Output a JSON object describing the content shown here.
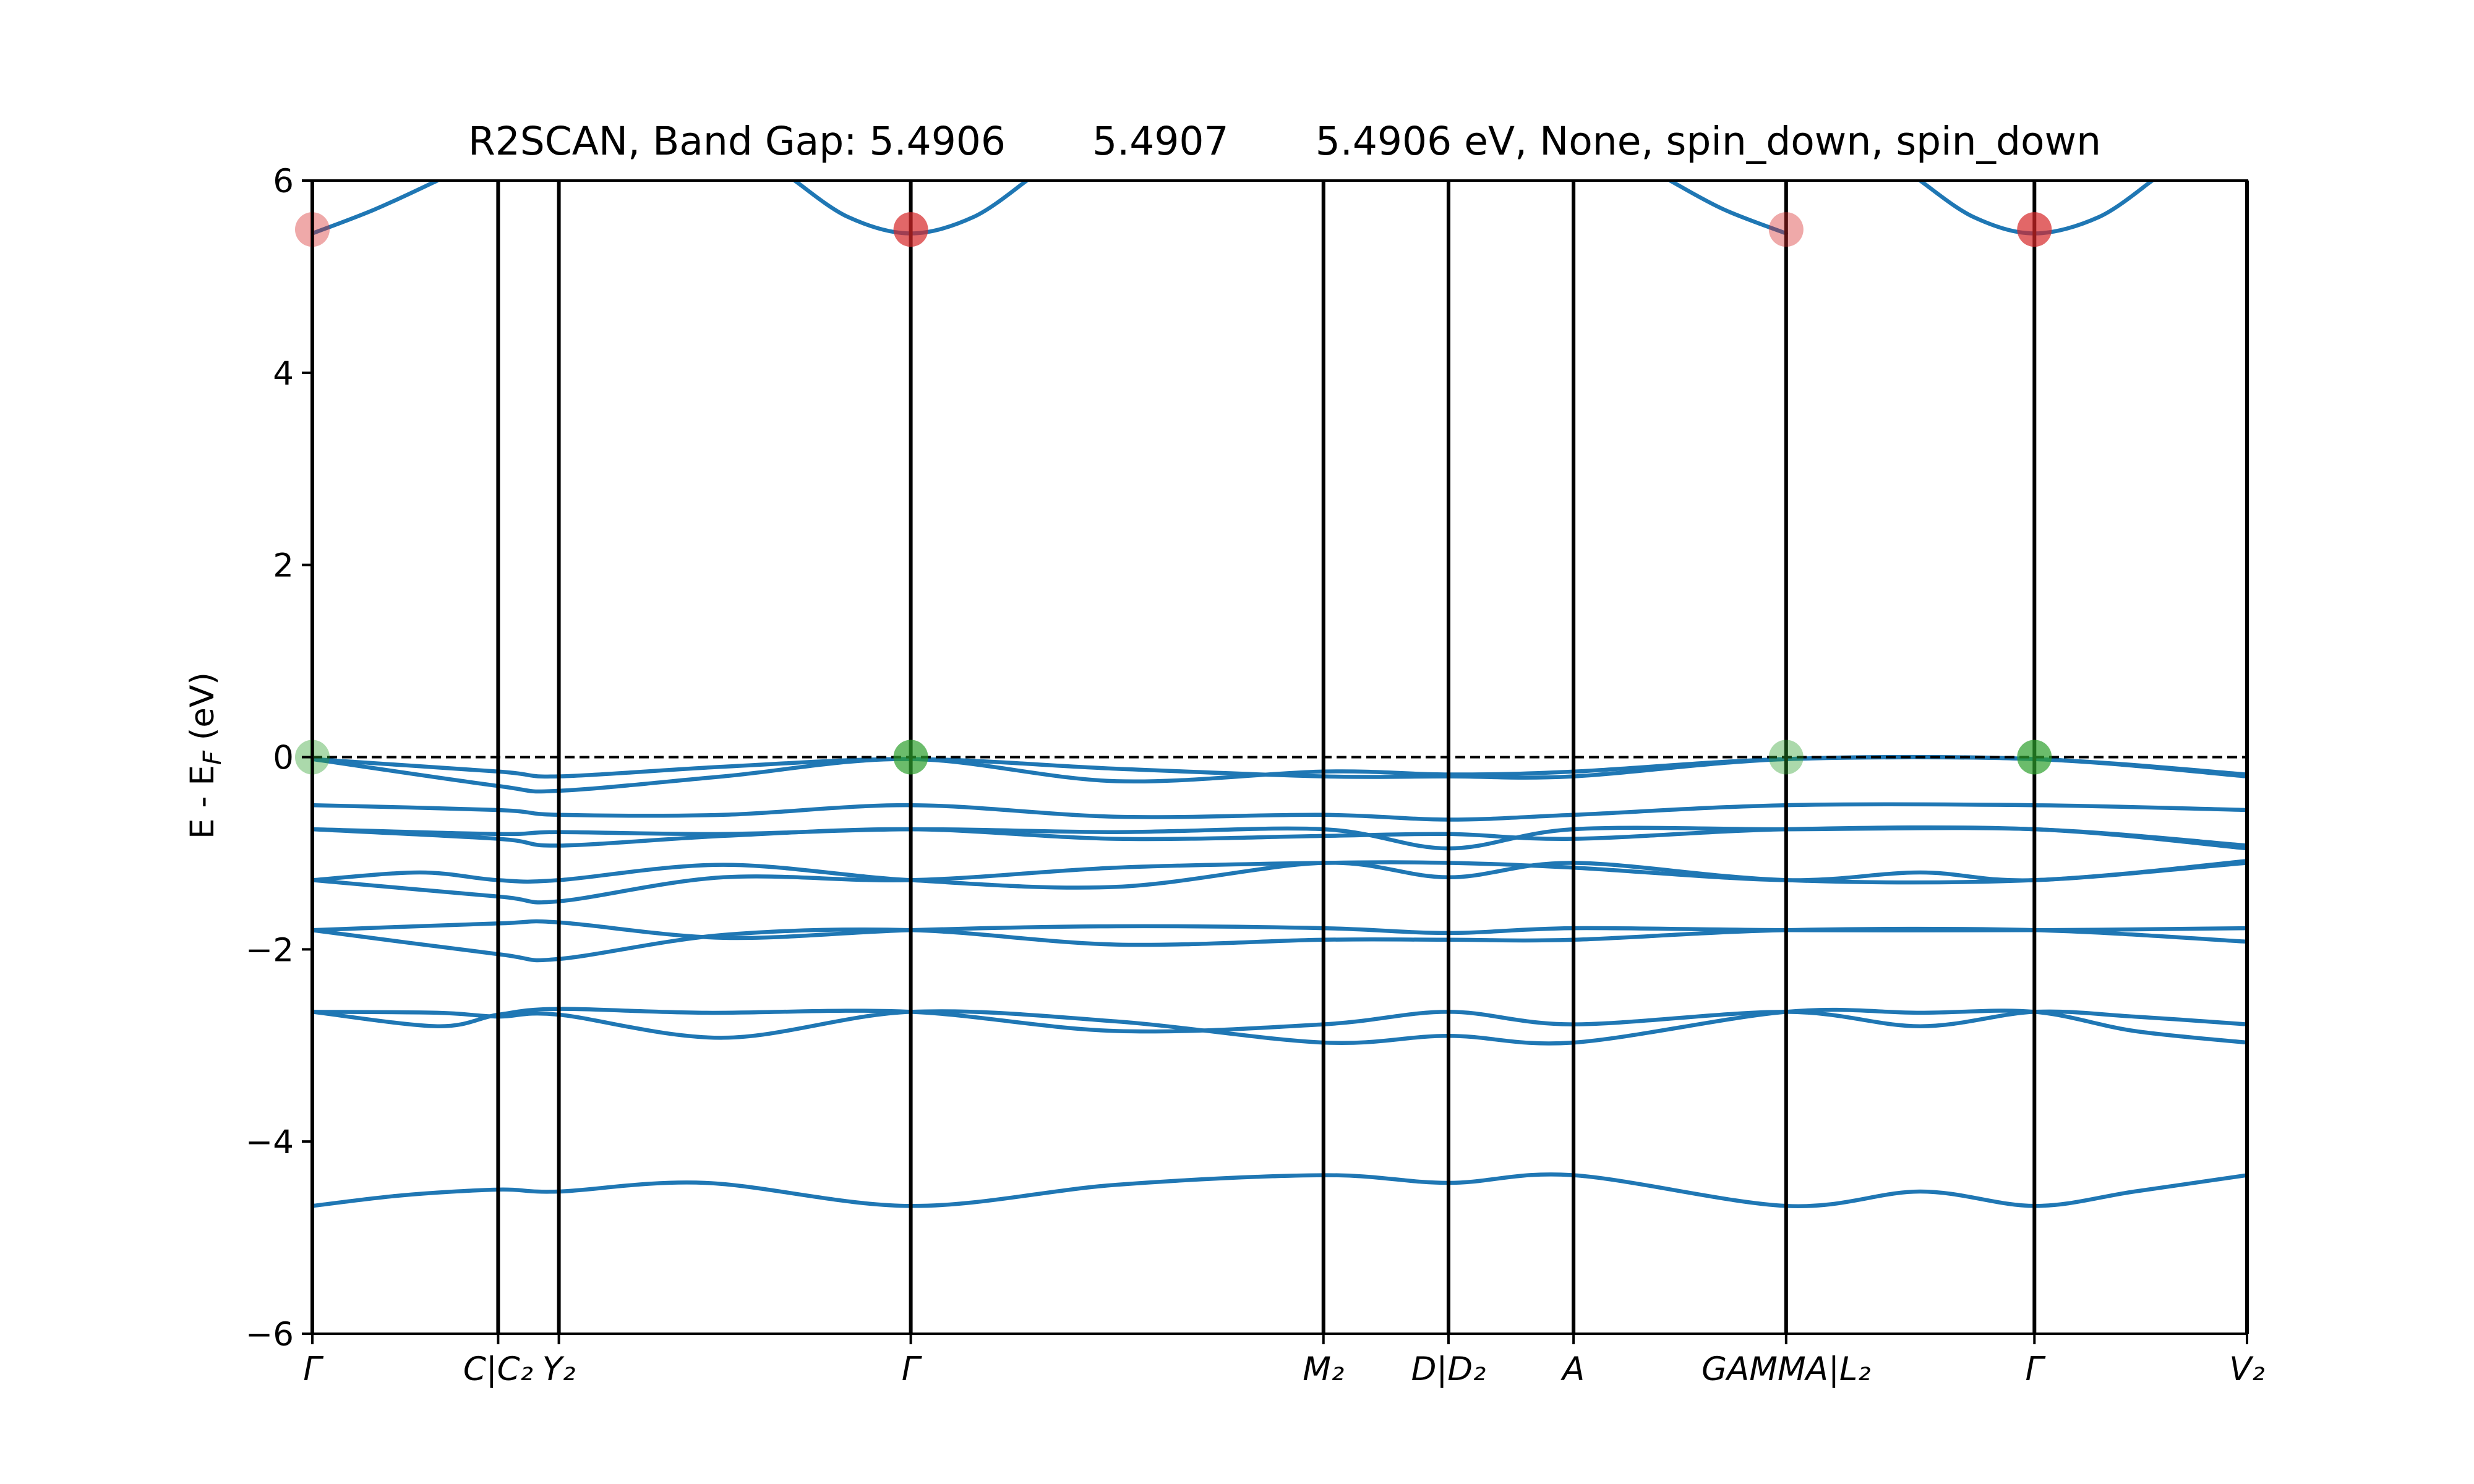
{
  "chart_data": {
    "type": "line",
    "title": "R2SCAN, Band Gap: 5.4906       5.4907       5.4906 eV, None, spin_down, spin_down",
    "ylabel_main": "E - E",
    "ylabel_sub": "F",
    "ylabel_unit": " (eV)",
    "xlabel": "",
    "ylim": [
      -6,
      6
    ],
    "xlim": [
      0,
      10.83
    ],
    "yticks": [
      -6,
      -4,
      -2,
      0,
      2,
      4,
      6
    ],
    "ytick_labels": [
      "−6",
      "−4",
      "−2",
      "0",
      "2",
      "4",
      "6"
    ],
    "kpoints": [
      {
        "x": 0,
        "label": "Γ"
      },
      {
        "x": 1.04,
        "label": "C|C₂"
      },
      {
        "x": 1.38,
        "label": "Y₂"
      },
      {
        "x": 3.35,
        "label": "Γ"
      },
      {
        "x": 5.66,
        "label": "M₂"
      },
      {
        "x": 6.36,
        "label": "D|D₂"
      },
      {
        "x": 7.06,
        "label": "A"
      },
      {
        "x": 8.25,
        "label": "GAMMA|L₂"
      },
      {
        "x": 9.64,
        "label": "Γ"
      },
      {
        "x": 10.83,
        "label": "V₂"
      }
    ],
    "fermi_level": 0,
    "grid": false,
    "line_color": "#1f77b4",
    "cbm_color": "#d62728",
    "vbm_color": "#2ca02c",
    "bands": [
      {
        "x": [
          0,
          0.5,
          1.04,
          1.38,
          2.2,
          3.35,
          4.5,
          5.66,
          6.36,
          7.06,
          8.25,
          9.0,
          9.64,
          10.2,
          10.83
        ],
        "y": [
          -4.67,
          -4.56,
          -4.5,
          -4.52,
          -4.43,
          -4.67,
          -4.45,
          -4.35,
          -4.43,
          -4.35,
          -4.67,
          -4.52,
          -4.67,
          -4.52,
          -4.35
        ]
      },
      {
        "x": [
          0,
          0.7,
          1.04,
          1.38,
          2.2,
          3.35,
          4.5,
          5.66,
          6.36,
          7.06,
          8.25,
          9.0,
          9.64,
          10.2,
          10.83
        ],
        "y": [
          -2.65,
          -2.8,
          -2.68,
          -2.62,
          -2.66,
          -2.65,
          -2.85,
          -2.78,
          -2.65,
          -2.78,
          -2.65,
          -2.8,
          -2.65,
          -2.7,
          -2.78
        ]
      },
      {
        "x": [
          0,
          0.7,
          1.04,
          1.38,
          2.3,
          3.35,
          4.5,
          5.66,
          6.36,
          7.06,
          8.25,
          9.0,
          9.64,
          10.2,
          10.83
        ],
        "y": [
          -2.65,
          -2.66,
          -2.7,
          -2.68,
          -2.92,
          -2.65,
          -2.75,
          -2.97,
          -2.9,
          -2.97,
          -2.65,
          -2.66,
          -2.65,
          -2.85,
          -2.97
        ]
      },
      {
        "x": [
          0,
          1.04,
          1.38,
          2.3,
          3.35,
          4.5,
          5.66,
          6.36,
          7.06,
          8.25,
          9.64,
          10.83
        ],
        "y": [
          -1.8,
          -2.05,
          -2.1,
          -1.85,
          -1.8,
          -1.95,
          -1.9,
          -1.9,
          -1.9,
          -1.8,
          -1.8,
          -1.92
        ]
      },
      {
        "x": [
          0,
          1.04,
          1.38,
          2.3,
          3.35,
          4.5,
          5.66,
          6.36,
          7.06,
          8.25,
          9.64,
          10.83
        ],
        "y": [
          -1.8,
          -1.73,
          -1.72,
          -1.88,
          -1.8,
          -1.76,
          -1.78,
          -1.83,
          -1.78,
          -1.8,
          -1.8,
          -1.78
        ]
      },
      {
        "x": [
          0,
          0.6,
          1.04,
          1.38,
          2.3,
          3.35,
          4.5,
          5.66,
          6.36,
          7.06,
          8.25,
          9.64,
          10.83
        ],
        "y": [
          -1.28,
          -1.2,
          -1.28,
          -1.28,
          -1.12,
          -1.28,
          -1.35,
          -1.1,
          -1.25,
          -1.1,
          -1.28,
          -1.28,
          -1.08
        ]
      },
      {
        "x": [
          0,
          1.04,
          1.38,
          2.3,
          3.35,
          4.5,
          5.66,
          6.36,
          7.06,
          8.25,
          9.0,
          9.64,
          10.83
        ],
        "y": [
          -1.28,
          -1.45,
          -1.5,
          -1.25,
          -1.28,
          -1.15,
          -1.1,
          -1.1,
          -1.15,
          -1.28,
          -1.2,
          -1.28,
          -1.1
        ]
      },
      {
        "x": [
          0,
          1.04,
          1.38,
          2.3,
          3.35,
          4.5,
          5.66,
          6.36,
          7.06,
          8.25,
          9.64,
          10.83
        ],
        "y": [
          -0.75,
          -0.85,
          -0.92,
          -0.82,
          -0.75,
          -0.85,
          -0.82,
          -0.8,
          -0.85,
          -0.75,
          -0.75,
          -0.95
        ]
      },
      {
        "x": [
          0,
          1.04,
          1.38,
          2.3,
          3.35,
          4.5,
          5.66,
          6.36,
          7.06,
          8.25,
          9.64,
          10.83
        ],
        "y": [
          -0.75,
          -0.8,
          -0.78,
          -0.8,
          -0.75,
          -0.78,
          -0.75,
          -0.95,
          -0.75,
          -0.75,
          -0.75,
          -0.92
        ]
      },
      {
        "x": [
          0,
          1.04,
          1.38,
          2.3,
          3.35,
          4.5,
          5.66,
          6.36,
          7.06,
          8.25,
          9.64,
          10.83
        ],
        "y": [
          -0.5,
          -0.55,
          -0.6,
          -0.6,
          -0.5,
          -0.62,
          -0.6,
          -0.65,
          -0.6,
          -0.5,
          -0.5,
          -0.55
        ]
      },
      {
        "x": [
          0,
          1.04,
          1.38,
          2.3,
          3.35,
          4.5,
          5.66,
          6.36,
          7.06,
          8.25,
          9.64,
          10.83
        ],
        "y": [
          -0.02,
          -0.3,
          -0.35,
          -0.2,
          -0.02,
          -0.25,
          -0.15,
          -0.18,
          -0.15,
          -0.02,
          -0.02,
          -0.18
        ]
      },
      {
        "x": [
          0,
          1.04,
          1.38,
          2.3,
          3.35,
          4.5,
          5.66,
          6.36,
          7.06,
          8.25,
          9.64,
          10.83
        ],
        "y": [
          -0.02,
          -0.15,
          -0.2,
          -0.1,
          -0.02,
          -0.12,
          -0.2,
          -0.2,
          -0.2,
          -0.02,
          -0.02,
          -0.2
        ]
      },
      {
        "x": [
          0,
          0.35,
          0.7
        ],
        "y": [
          5.45,
          5.7,
          6.0
        ]
      },
      {
        "x": [
          2.7,
          3.0,
          3.35,
          3.7,
          4.0
        ],
        "y": [
          6.0,
          5.62,
          5.45,
          5.62,
          6.0
        ]
      },
      {
        "x": [
          7.6,
          7.9,
          8.25
        ],
        "y": [
          6.0,
          5.7,
          5.45
        ]
      },
      {
        "x": [
          9.0,
          9.3,
          9.64,
          10.0,
          10.3
        ],
        "y": [
          6.0,
          5.62,
          5.45,
          5.62,
          6.0
        ]
      }
    ],
    "cbm_points": [
      {
        "x": 0,
        "y": 5.4906,
        "opacity": 0.4
      },
      {
        "x": 3.35,
        "y": 5.4906,
        "opacity": 0.7
      },
      {
        "x": 8.25,
        "y": 5.4906,
        "opacity": 0.4
      },
      {
        "x": 9.64,
        "y": 5.4906,
        "opacity": 0.7
      }
    ],
    "vbm_points": [
      {
        "x": 0,
        "y": 0,
        "opacity": 0.4
      },
      {
        "x": 3.35,
        "y": 0,
        "opacity": 0.7
      },
      {
        "x": 8.25,
        "y": 0,
        "opacity": 0.4
      },
      {
        "x": 9.64,
        "y": 0,
        "opacity": 0.7
      }
    ]
  }
}
